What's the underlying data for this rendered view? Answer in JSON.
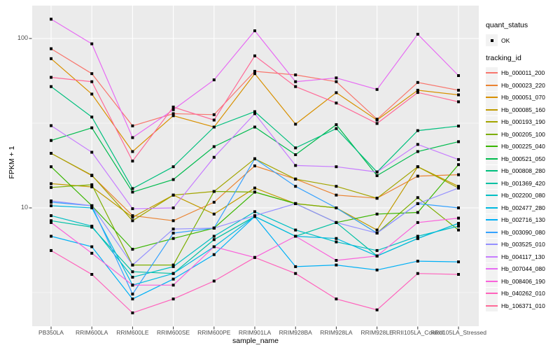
{
  "figure": {
    "background": "#FFFFFF",
    "panel_background": "#EBEBEB",
    "grid_color": "#FFFFFF",
    "point_color": "#000000",
    "tick_color": "#333333"
  },
  "axes": {
    "y": {
      "title": "FPKM + 1",
      "scale": "log10",
      "ticks": [
        {
          "label": "100",
          "value": 100
        },
        {
          "label": "10",
          "value": 10
        }
      ],
      "minor_ticks": [
        31.623,
        3.1623
      ]
    },
    "x": {
      "title": "sample_name",
      "categories": [
        "PB350LA",
        "RRIM600LA",
        "RRIM600LE",
        "RRIM600SE",
        "RRIM600PE",
        "RRIM901LA",
        "RRIM928BA",
        "RRIM928LA",
        "RRIM928LE",
        "RRII105LA_Control",
        "RRII105LA_Stressed"
      ]
    }
  },
  "legend": {
    "quant_status": {
      "title": "quant_status",
      "items": [
        {
          "label": "OK",
          "marker": "black-square"
        }
      ]
    },
    "tracking_id": {
      "title": "tracking_id"
    }
  },
  "chart_data": {
    "type": "line",
    "title": "",
    "xlabel": "sample_name",
    "ylabel": "FPKM + 1",
    "y_scale": "log10",
    "ylim": [
      2,
      156
    ],
    "grid": true,
    "legend_position": "right",
    "point_marker": "black-square",
    "x_categories": [
      "PB350LA",
      "RRIM600LA",
      "RRIM600LE",
      "RRIM600SE",
      "RRIM600PE",
      "RRIM901LA",
      "RRIM928BA",
      "RRIM928LA",
      "RRIM928LE",
      "RRII105LA_Control",
      "RRII105LA_Stressed"
    ],
    "series": [
      {
        "name": "Hb_000011_200",
        "color": "#F8766D",
        "values": [
          87,
          62,
          30.5,
          36,
          35.5,
          64,
          61,
          55.6,
          33.4,
          55,
          49.5
        ]
      },
      {
        "name": "Hb_000023_220",
        "color": "#EA8331",
        "values": [
          21,
          15.5,
          9.0,
          8.4,
          10.8,
          17.7,
          14.8,
          11.9,
          11.4,
          15.4,
          15.7
        ]
      },
      {
        "name": "Hb_000051_070",
        "color": "#D89000",
        "values": [
          76,
          47,
          21.5,
          35,
          30,
          62,
          31.2,
          47.9,
          33,
          49.5,
          46.5
        ]
      },
      {
        "name": "Hb_000085_160",
        "color": "#C09B00",
        "values": [
          13.9,
          13.3,
          8.8,
          11.9,
          9.2,
          13.1,
          10.6,
          10,
          7.4,
          17.5,
          13.4
        ]
      },
      {
        "name": "Hb_000193_190",
        "color": "#A3A500",
        "values": [
          21,
          15.6,
          8.4,
          11.9,
          12.5,
          19.5,
          14.8,
          13.4,
          11.4,
          17.5,
          13.1
        ]
      },
      {
        "name": "Hb_000205_100",
        "color": "#7CAE00",
        "values": [
          13.2,
          13.7,
          4.6,
          4.6,
          12.5,
          12.4,
          10.6,
          10,
          7.1,
          11.5,
          7.4
        ]
      },
      {
        "name": "Hb_000225_040",
        "color": "#39B600",
        "values": [
          17.5,
          10.3,
          5.7,
          6.6,
          7.6,
          12.4,
          10.6,
          8.2,
          9.2,
          9.4,
          18
        ]
      },
      {
        "name": "Hb_000521_050",
        "color": "#00BB4E",
        "values": [
          25,
          29.7,
          12.4,
          14.7,
          23,
          30,
          20.6,
          31,
          15.5,
          21.5,
          24.6
        ]
      },
      {
        "name": "Hb_000808_280",
        "color": "#00BF7D",
        "values": [
          52,
          34.4,
          13,
          17.5,
          30,
          37,
          22.6,
          29.4,
          16.3,
          28.6,
          30.4
        ]
      },
      {
        "name": "Hb_001369_420",
        "color": "#00C1A3",
        "values": [
          8.4,
          7.7,
          4.2,
          4.1,
          6.5,
          8.9,
          6.8,
          8.2,
          5.2,
          6.6,
          8.1
        ]
      },
      {
        "name": "Hb_002200_080",
        "color": "#00BFC4",
        "values": [
          9.0,
          7.8,
          3.9,
          4.5,
          6.8,
          9.5,
          7.4,
          6.3,
          5.6,
          6.8,
          7.8
        ]
      },
      {
        "name": "Hb_002477_280",
        "color": "#00BAE0",
        "values": [
          10.3,
          10.0,
          3.5,
          4.1,
          5.9,
          8.9,
          6.8,
          6.6,
          5.2,
          6.6,
          8.1
        ]
      },
      {
        "name": "Hb_002716_130",
        "color": "#00B0F6",
        "values": [
          6.8,
          5.9,
          2.9,
          3.8,
          5.3,
          8.9,
          4.5,
          4.6,
          4.3,
          4.85,
          4.8
        ]
      },
      {
        "name": "Hb_003090_080",
        "color": "#35A2FF",
        "values": [
          10.8,
          10.3,
          3.1,
          7.1,
          7.6,
          19.5,
          13.4,
          10,
          7.1,
          10.6,
          10
        ]
      },
      {
        "name": "Hb_003525_010",
        "color": "#9590FF",
        "values": [
          11.0,
          10.3,
          4.6,
          7.5,
          7.6,
          9.0,
          10.6,
          8.2,
          7.1,
          10.6,
          13.1
        ]
      },
      {
        "name": "Hb_004117_130",
        "color": "#C77CFF",
        "values": [
          30.6,
          21.3,
          9.9,
          10,
          19.9,
          36,
          17.8,
          17.5,
          16.3,
          23.7,
          19.3
        ]
      },
      {
        "name": "Hb_007044_080",
        "color": "#E76BF3",
        "values": [
          130,
          93,
          26,
          38,
          57,
          111,
          55.6,
          58.5,
          50,
          106,
          60.4
        ]
      },
      {
        "name": "Hb_008406_190",
        "color": "#FA62DB",
        "values": [
          8.2,
          5.4,
          3.5,
          3.5,
          5.9,
          5.1,
          6.8,
          4.9,
          5.2,
          8.2,
          8.7
        ]
      },
      {
        "name": "Hb_040262_010",
        "color": "#FF62BC",
        "values": [
          5.6,
          4.05,
          2.4,
          2.9,
          3.7,
          5.1,
          4.1,
          2.9,
          2.5,
          4.1,
          4.05
        ]
      },
      {
        "name": "Hb_106371_010",
        "color": "#FF6A98",
        "values": [
          59,
          55.6,
          18.9,
          39.4,
          33,
          79,
          52,
          41.6,
          31.5,
          48,
          42.3
        ]
      }
    ]
  }
}
